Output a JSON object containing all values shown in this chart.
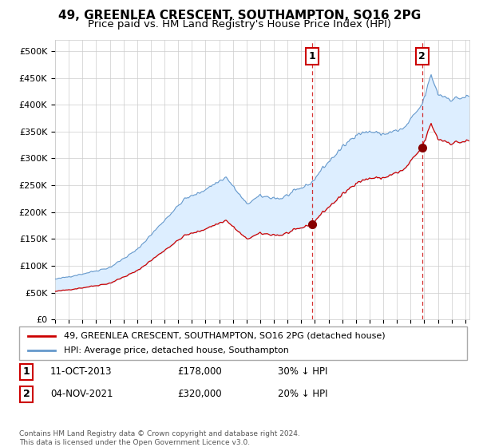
{
  "title": "49, GREENLEA CRESCENT, SOUTHAMPTON, SO16 2PG",
  "subtitle": "Price paid vs. HM Land Registry's House Price Index (HPI)",
  "ylim": [
    0,
    520000
  ],
  "yticks": [
    0,
    50000,
    100000,
    150000,
    200000,
    250000,
    300000,
    350000,
    400000,
    450000,
    500000
  ],
  "ytick_labels": [
    "£0",
    "£50K",
    "£100K",
    "£150K",
    "£200K",
    "£250K",
    "£300K",
    "£350K",
    "£400K",
    "£450K",
    "£500K"
  ],
  "xlim_start": 1995.0,
  "xlim_end": 2025.3,
  "sale1_x": 2013.78,
  "sale1_y": 178000,
  "sale1_label": "1",
  "sale1_date": "11-OCT-2013",
  "sale1_price": "£178,000",
  "sale1_hpi": "30% ↓ HPI",
  "sale2_x": 2021.84,
  "sale2_y": 320000,
  "sale2_label": "2",
  "sale2_date": "04-NOV-2021",
  "sale2_price": "£320,000",
  "sale2_hpi": "20% ↓ HPI",
  "line_color_property": "#cc0000",
  "line_color_hpi": "#6699cc",
  "shaded_color": "#ddeeff",
  "grid_color": "#cccccc",
  "background_color": "#ffffff",
  "legend_label_property": "49, GREENLEA CRESCENT, SOUTHAMPTON, SO16 2PG (detached house)",
  "legend_label_hpi": "HPI: Average price, detached house, Southampton",
  "footer": "Contains HM Land Registry data © Crown copyright and database right 2024.\nThis data is licensed under the Open Government Licence v3.0.",
  "title_fontsize": 11,
  "subtitle_fontsize": 9.5
}
